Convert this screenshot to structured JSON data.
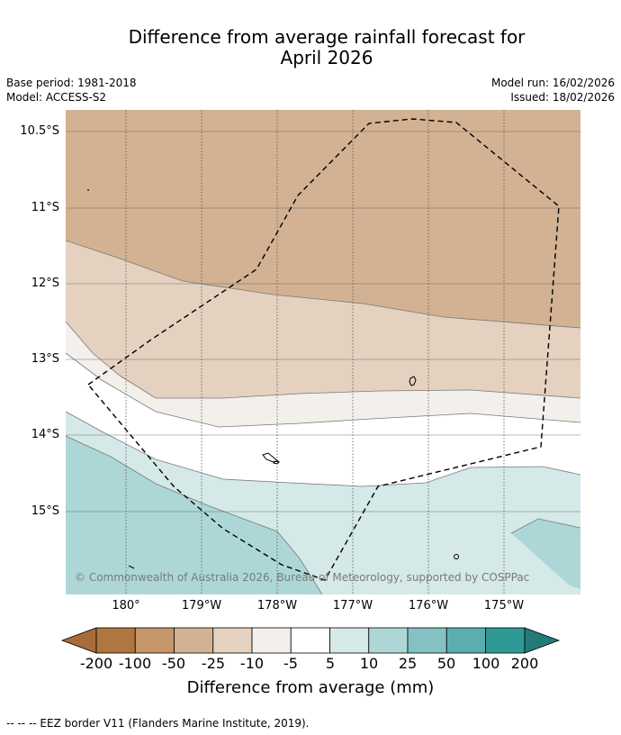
{
  "title_line1": "Difference from average rainfall forecast for",
  "title_line2": "April 2026",
  "meta_left": {
    "base_period": "Base period: 1981-2018",
    "model": "Model: ACCESS-S2"
  },
  "meta_right": {
    "model_run": "Model run: 16/02/2026",
    "issued": "Issued: 18/02/2026"
  },
  "map": {
    "latitude_labels": [
      "10.5°S",
      "11°S",
      "12°S",
      "13°S",
      "14°S",
      "15°S"
    ],
    "longitude_labels": [
      "180°",
      "179°W",
      "178°W",
      "177°W",
      "176°W",
      "175°W"
    ],
    "copyright": "© Commonwealth of Australia 2026, Bureau of Meteorology, supported by COSPPac",
    "colors": {
      "m100": "#d2b292",
      "m50": "#e4d1bf",
      "m10": "#f3efea",
      "zero": "#ffffff",
      "p5": "#d4e9e8",
      "p25": "#add7d7"
    }
  },
  "colorbar": {
    "labels": [
      "-200",
      "-100",
      "-50",
      "-25",
      "-10",
      "-5",
      "5",
      "10",
      "25",
      "50",
      "100",
      "200"
    ],
    "colors": [
      "#a86c3a",
      "#b0763f",
      "#c49668",
      "#d2b292",
      "#e4d1bf",
      "#f3efea",
      "#ffffff",
      "#d4e9e8",
      "#add7d7",
      "#84c1c2",
      "#5baeb0",
      "#2f9996",
      "#237b78"
    ],
    "title": "Difference from average (mm)"
  },
  "legend": {
    "eez": "--  --  -- EEZ border V11 (Flanders Marine Institute, 2019)."
  }
}
